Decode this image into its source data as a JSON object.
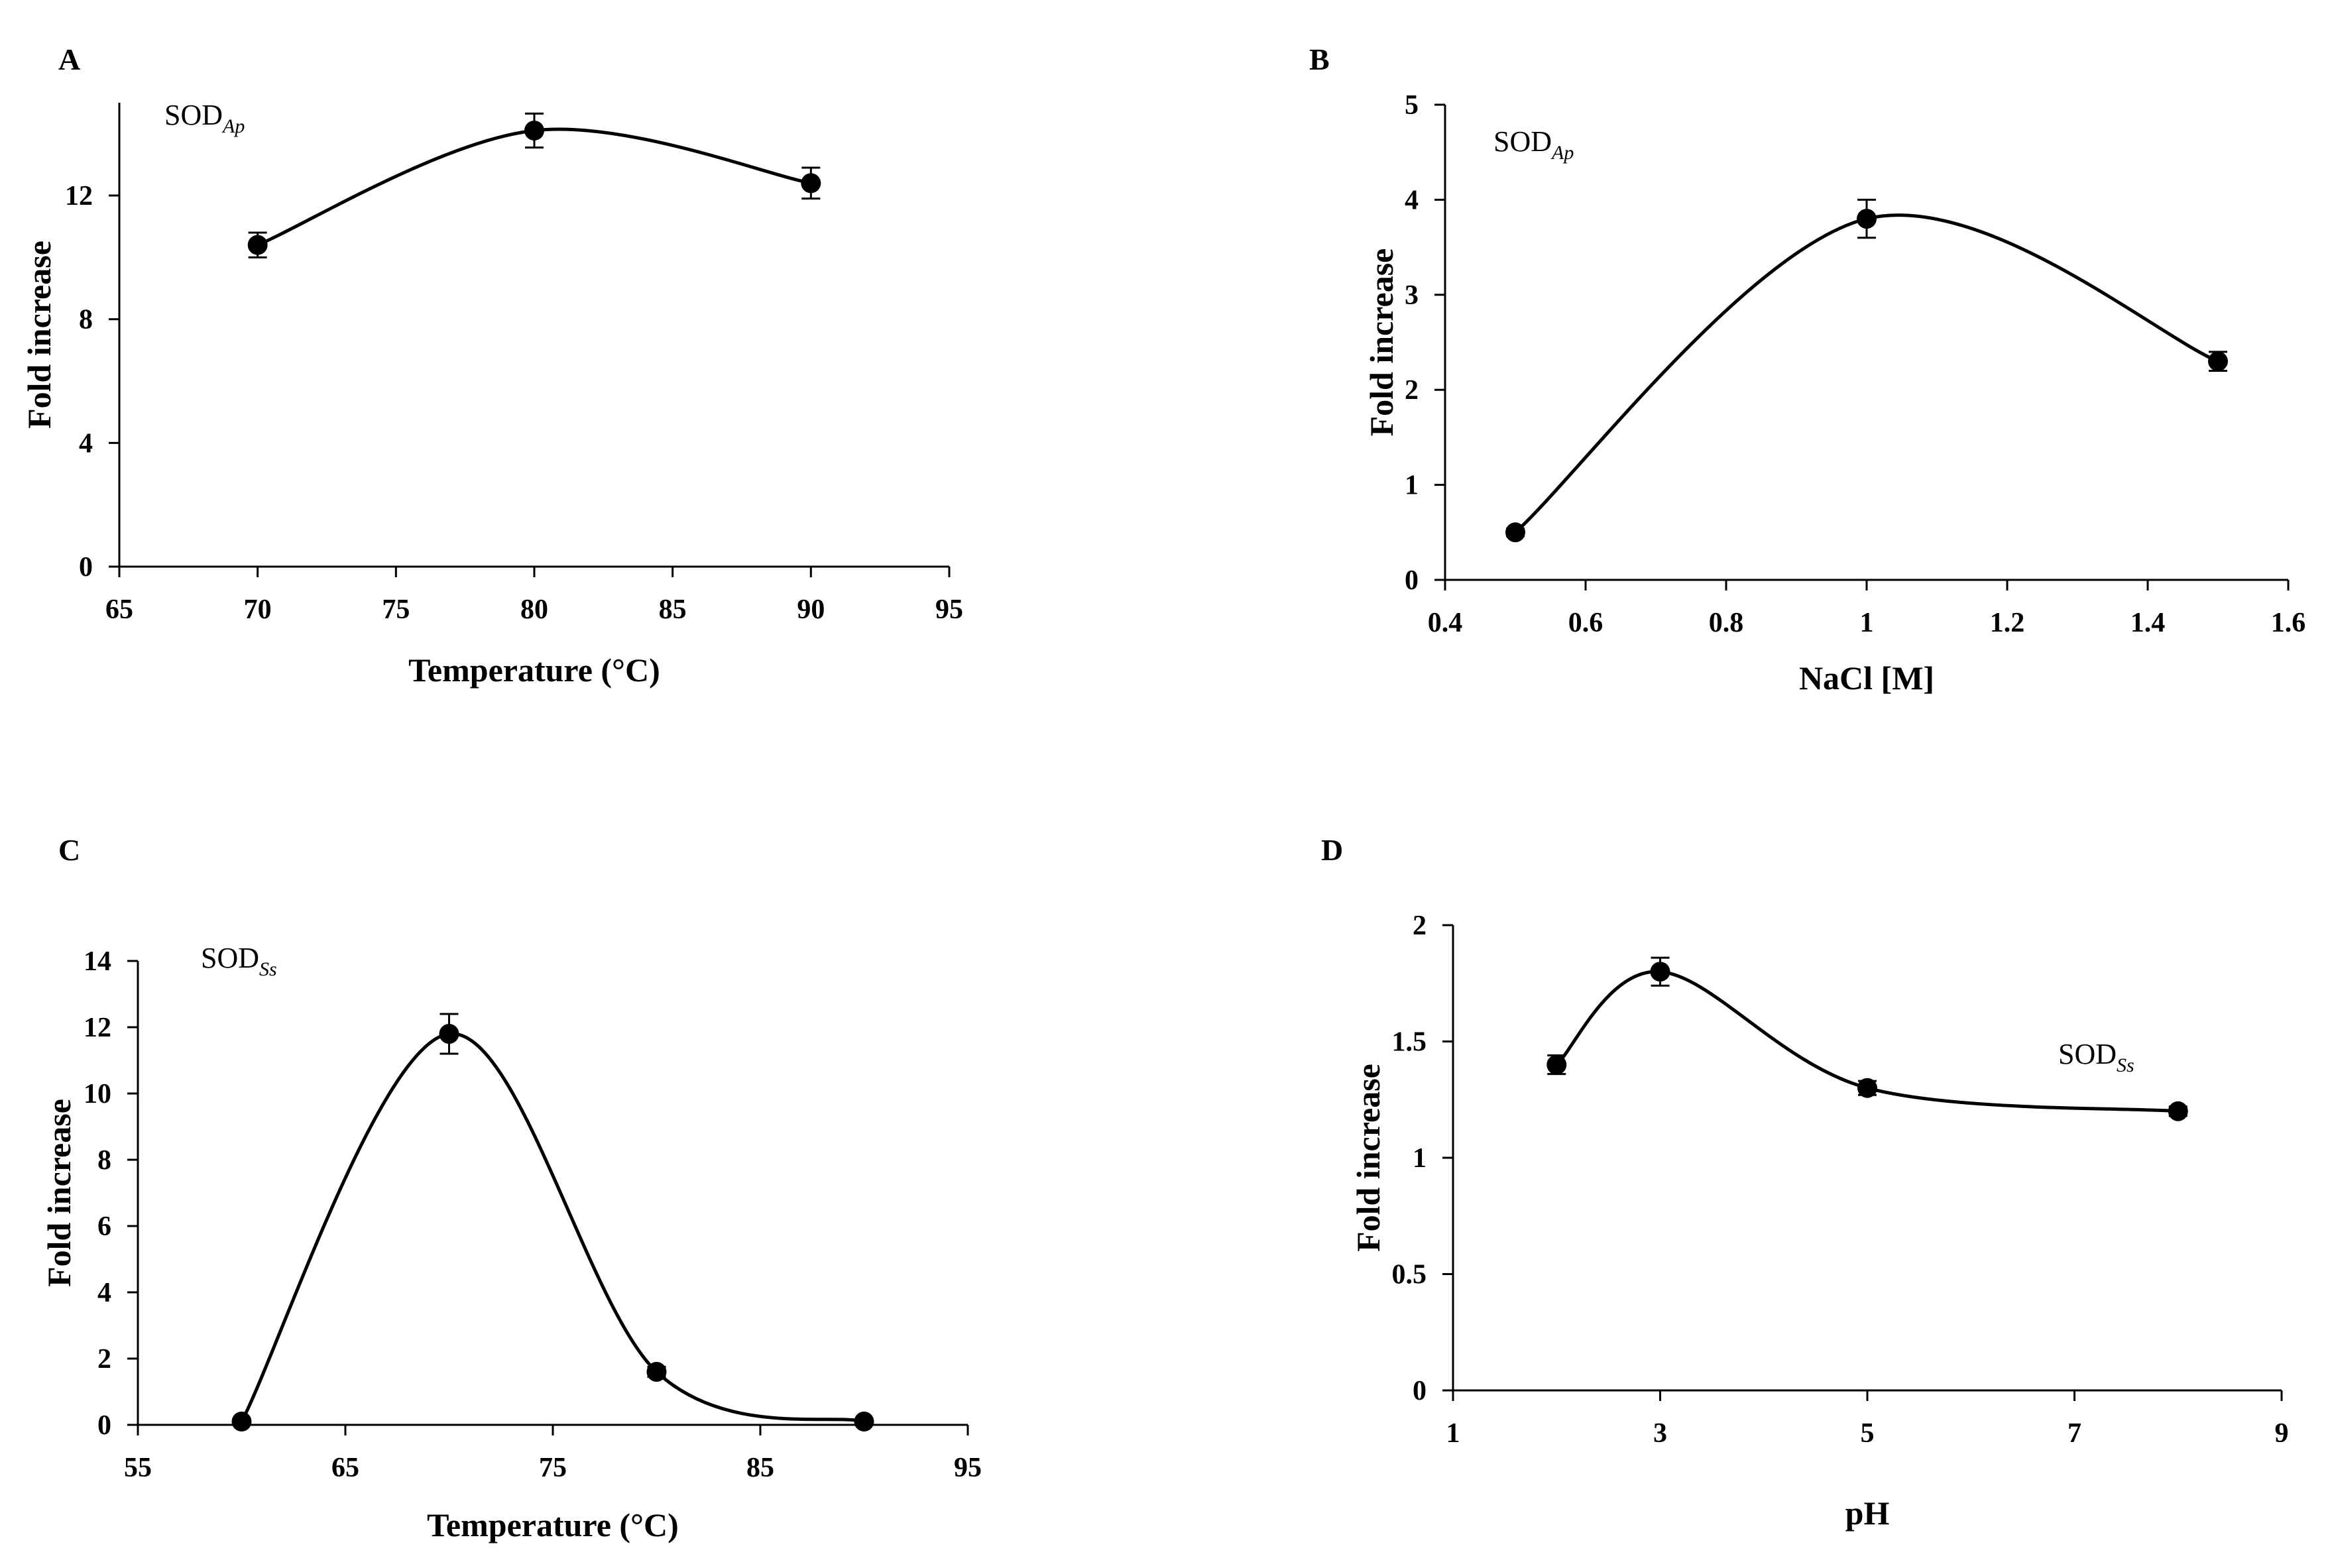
{
  "chart_data": [
    {
      "panel": "A",
      "type": "line",
      "title": "",
      "series_label": "SOD",
      "series_label_subscript": "Ap",
      "xlabel": "Temperature (°C)",
      "ylabel": "Fold increase",
      "xlim": [
        65,
        95
      ],
      "ylim": [
        0,
        15
      ],
      "xticks": [
        65,
        70,
        75,
        80,
        85,
        90,
        95
      ],
      "yticks": [
        0,
        4,
        8,
        12
      ],
      "x": [
        70,
        80,
        90
      ],
      "y": [
        10.4,
        14.1,
        12.4
      ],
      "error": [
        0.4,
        0.55,
        0.5
      ],
      "smooth": true,
      "legend_position": "top-left"
    },
    {
      "panel": "B",
      "type": "line",
      "title": "",
      "series_label": "SOD",
      "series_label_subscript": "Ap",
      "xlabel": "NaCl [M]",
      "ylabel": "Fold increase",
      "xlim": [
        0.4,
        1.6
      ],
      "ylim": [
        0,
        5
      ],
      "xticks": [
        0.4,
        0.6,
        0.8,
        1,
        1.2,
        1.4,
        1.6
      ],
      "yticks": [
        0,
        1,
        2,
        3,
        4,
        5
      ],
      "x": [
        0.5,
        1.0,
        1.5
      ],
      "y": [
        0.5,
        3.8,
        2.3
      ],
      "error": [
        0.04,
        0.2,
        0.1
      ],
      "smooth": true,
      "legend_position": "top-left"
    },
    {
      "panel": "C",
      "type": "line",
      "title": "",
      "series_label": "SOD",
      "series_label_subscript": "Ss",
      "xlabel": "Temperature (°C)",
      "ylabel": "Fold increase",
      "xlim": [
        55,
        95
      ],
      "ylim": [
        0,
        14
      ],
      "xticks": [
        55,
        65,
        75,
        85,
        95
      ],
      "yticks": [
        0,
        2,
        4,
        6,
        8,
        10,
        12,
        14
      ],
      "x": [
        60,
        70,
        80,
        90
      ],
      "y": [
        0.1,
        11.8,
        1.6,
        0.1
      ],
      "error": [
        0.05,
        0.6,
        0.15,
        0.05
      ],
      "smooth": true,
      "legend_position": "top-left"
    },
    {
      "panel": "D",
      "type": "line",
      "title": "",
      "series_label": "SOD",
      "series_label_subscript": "Ss",
      "xlabel": "pH",
      "ylabel": "Fold increase",
      "xlim": [
        1,
        9
      ],
      "ylim": [
        0,
        2
      ],
      "xticks": [
        1,
        3,
        5,
        7,
        9
      ],
      "yticks": [
        0,
        0.5,
        1,
        1.5,
        2
      ],
      "x": [
        2,
        3,
        5,
        8
      ],
      "y": [
        1.4,
        1.8,
        1.3,
        1.2
      ],
      "error": [
        0.04,
        0.06,
        0.03,
        0.02
      ],
      "smooth": true,
      "legend_position": "right"
    }
  ]
}
